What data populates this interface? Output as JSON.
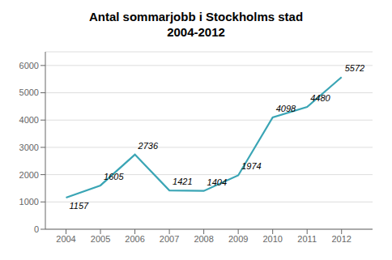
{
  "chart_data": {
    "type": "line",
    "title": "Antal sommarjobb i Stockholms stad",
    "subtitle": "2004-2012",
    "x": [
      2004,
      2005,
      2006,
      2007,
      2008,
      2009,
      2010,
      2011,
      2012
    ],
    "values": [
      1157,
      1605,
      2736,
      1421,
      1404,
      1974,
      4098,
      4480,
      5572
    ],
    "color": "#3aa5b5",
    "xlim": [
      2003.4,
      2012.9
    ],
    "xticks": [
      2004,
      2005,
      2006,
      2007,
      2008,
      2009,
      2010,
      2011,
      2012
    ],
    "ylim": [
      0,
      6500
    ],
    "yticks": [
      0,
      1000,
      2000,
      3000,
      4000,
      5000,
      6000
    ],
    "grid": true,
    "data_labels": true
  }
}
